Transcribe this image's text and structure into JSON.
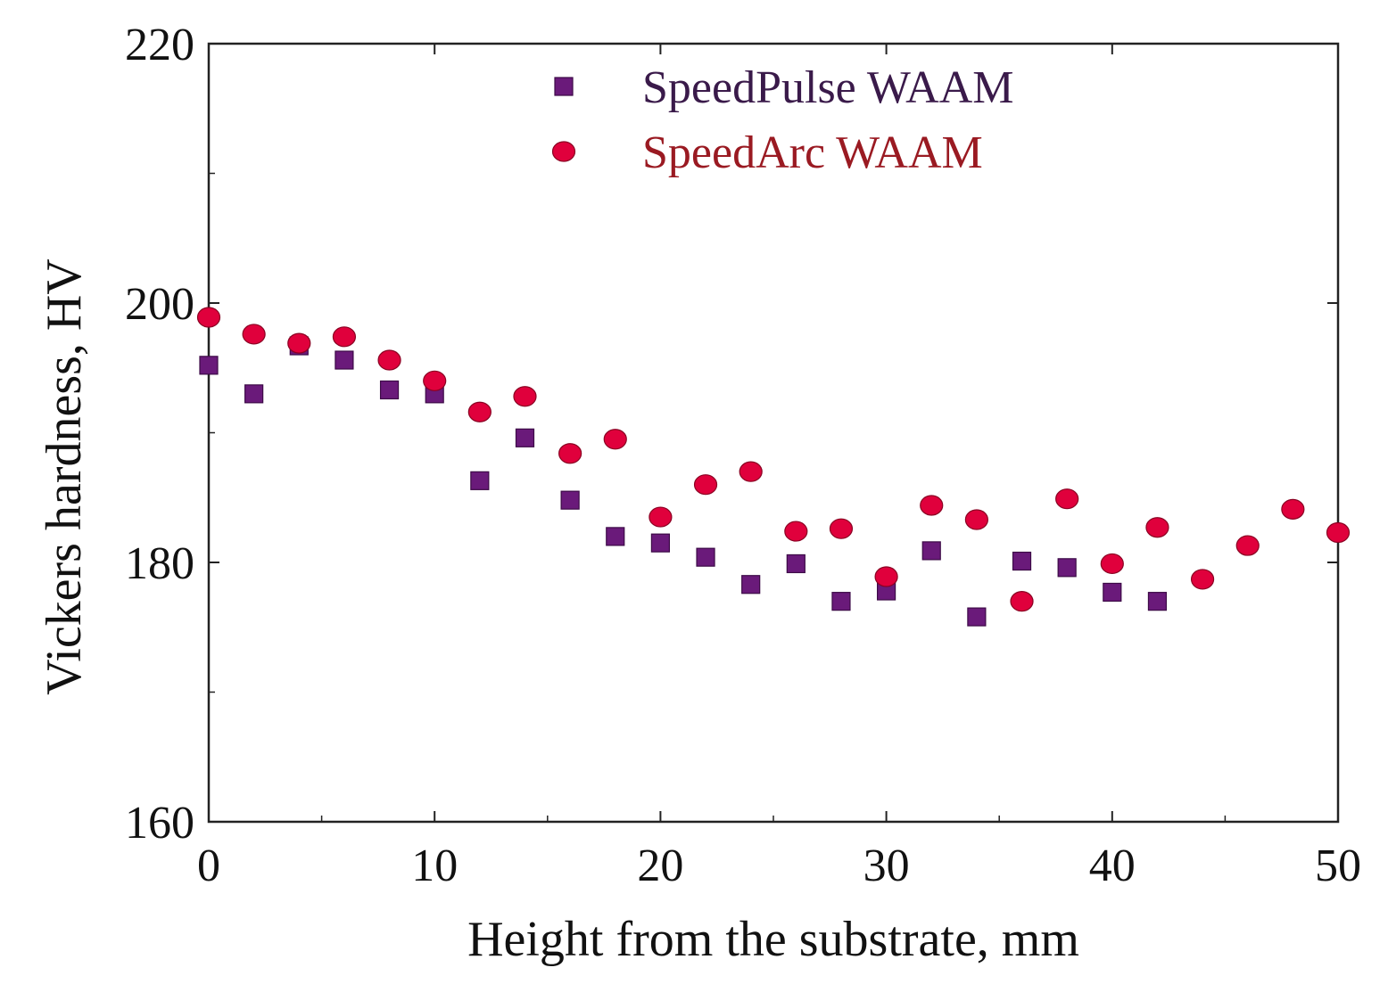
{
  "chart_data": {
    "type": "scatter",
    "title": "",
    "xlabel": "Height from the substrate, mm",
    "ylabel": "Vickers hardness, HV",
    "xlim": [
      0,
      50
    ],
    "ylim": [
      160,
      220
    ],
    "xticks": [
      0,
      10,
      20,
      30,
      40,
      50
    ],
    "yticks": [
      160,
      180,
      200,
      220
    ],
    "grid": false,
    "legend_position": "top-center",
    "series": [
      {
        "name": "SpeedPulse WAAM",
        "marker": "square",
        "color": "#6a1a7a",
        "label_color": "#3a1a4a",
        "x": [
          0,
          2,
          4,
          6,
          8,
          10,
          12,
          14,
          16,
          18,
          20,
          22,
          24,
          26,
          28,
          30,
          32,
          34,
          36,
          38,
          40,
          42
        ],
        "y": [
          195.2,
          193.0,
          196.7,
          195.6,
          193.3,
          193.0,
          186.3,
          189.6,
          184.8,
          182.0,
          181.5,
          180.4,
          178.3,
          179.9,
          177.0,
          177.8,
          180.9,
          175.8,
          180.1,
          179.6,
          177.7,
          177.0
        ]
      },
      {
        "name": "SpeedArc WAAM",
        "marker": "circle",
        "color": "#e0003c",
        "label_color": "#9a1a22",
        "x": [
          0,
          2,
          4,
          6,
          8,
          10,
          12,
          14,
          16,
          18,
          20,
          22,
          24,
          26,
          28,
          30,
          32,
          34,
          36,
          38,
          40,
          42,
          44,
          46,
          48,
          50
        ],
        "y": [
          198.9,
          197.6,
          196.9,
          197.4,
          195.6,
          194.0,
          191.6,
          192.8,
          188.4,
          189.5,
          183.5,
          186.0,
          187.0,
          182.4,
          182.6,
          178.9,
          184.4,
          183.3,
          177.0,
          184.9,
          179.9,
          182.7,
          178.7,
          181.3,
          184.1,
          182.3
        ]
      }
    ]
  }
}
